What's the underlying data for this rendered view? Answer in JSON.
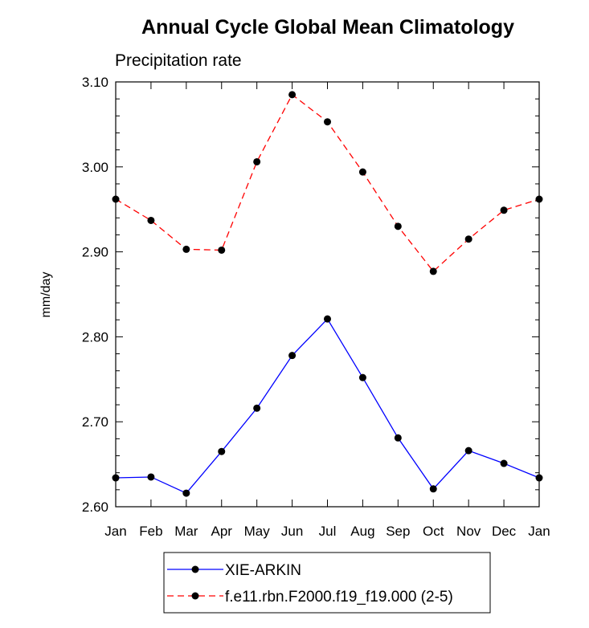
{
  "chart_data": {
    "type": "line",
    "title": "Annual Cycle Global Mean Climatology",
    "subtitle": "Precipitation rate",
    "xlabel": "",
    "ylabel": "mm/day",
    "ylim": [
      2.6,
      3.1
    ],
    "yticks": [
      2.6,
      2.7,
      2.8,
      2.9,
      3.0,
      3.1
    ],
    "ytick_labels": [
      "2.60",
      "2.70",
      "2.80",
      "2.90",
      "3.00",
      "3.10"
    ],
    "categories": [
      "Jan",
      "Feb",
      "Mar",
      "Apr",
      "May",
      "Jun",
      "Jul",
      "Aug",
      "Sep",
      "Oct",
      "Nov",
      "Dec",
      "Jan"
    ],
    "series": [
      {
        "name": "XIE-ARKIN",
        "color": "#0000ff",
        "dashed": false,
        "marker_color": "#000000",
        "values": [
          2.634,
          2.635,
          2.616,
          2.665,
          2.716,
          2.778,
          2.821,
          2.752,
          2.681,
          2.621,
          2.666,
          2.651,
          2.634
        ]
      },
      {
        "name": "f.e11.rbn.F2000.f19_f19.000 (2-5)",
        "color": "#ff0000",
        "dashed": true,
        "marker_color": "#000000",
        "values": [
          2.962,
          2.937,
          2.903,
          2.902,
          3.006,
          3.085,
          3.053,
          2.994,
          2.93,
          2.877,
          2.915,
          2.949,
          2.962
        ]
      }
    ],
    "grid": false,
    "legend": "bottom-center"
  }
}
